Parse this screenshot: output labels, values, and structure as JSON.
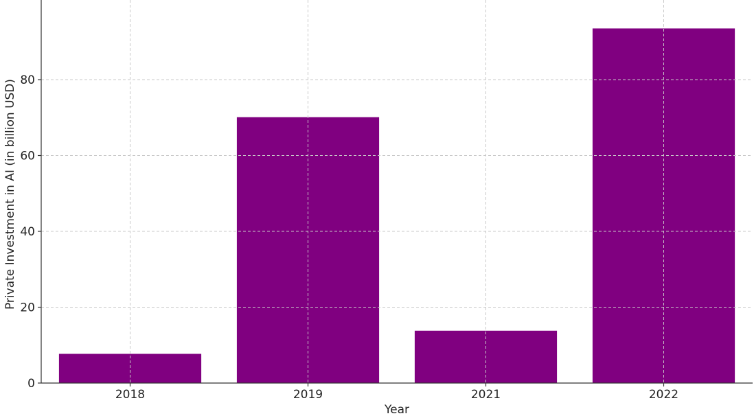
{
  "chart_data": {
    "type": "bar",
    "categories": [
      "2018",
      "2019",
      "2021",
      "2022"
    ],
    "values": [
      7.7,
      70.1,
      13.8,
      93.5
    ],
    "title": "",
    "xlabel": "Year",
    "ylabel": "Private Investment in AI (in billion USD)",
    "ylim": [
      0,
      101
    ],
    "yticks": [
      0,
      20,
      40,
      60,
      80
    ],
    "grid": true,
    "legend": "none",
    "bar_color": "#800080"
  }
}
